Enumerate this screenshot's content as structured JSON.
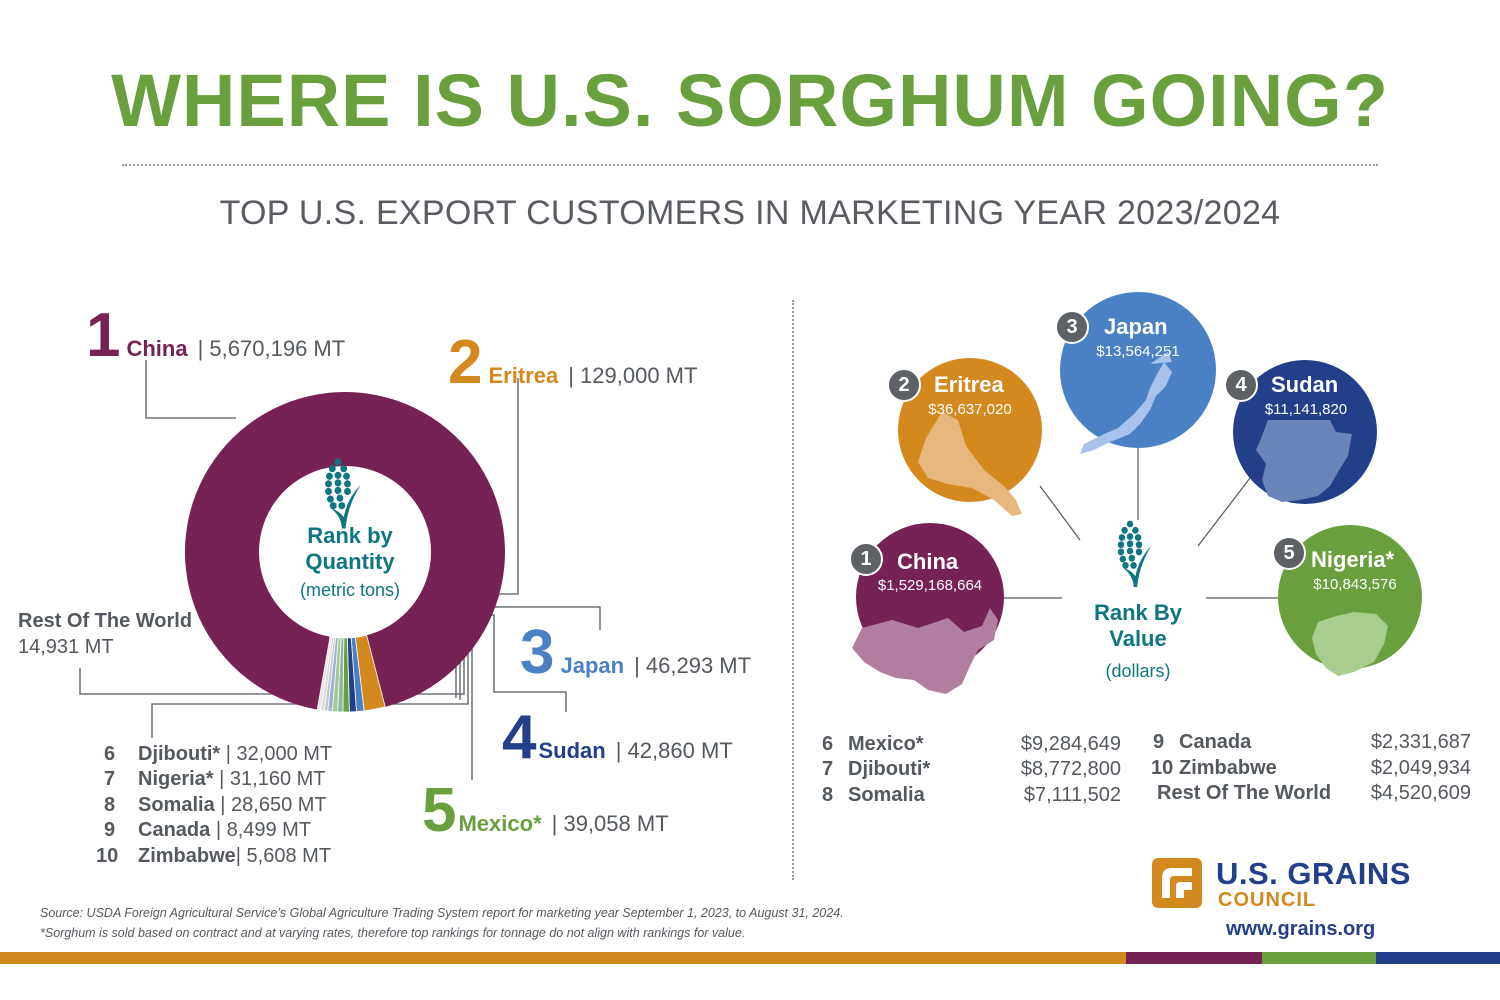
{
  "title": "WHERE IS U.S. SORGHUM GOING?",
  "subtitle": "TOP U.S. EXPORT CUSTOMERS IN MARKETING YEAR 2023/2024",
  "colors": {
    "title": "#6a9f3d",
    "china": "#772254",
    "eritrea": "#d4891f",
    "japan": "#4a81c4",
    "sudan": "#233f8a",
    "mexico": "#6a9f3d",
    "nigeria": "#6a9f3d",
    "teal": "#0e7680",
    "gray": "#54595f"
  },
  "chart_data": [
    {
      "type": "pie",
      "title": "Rank by Quantity",
      "subtitle": "(metric tons)",
      "slices": [
        {
          "rank": "1",
          "name": "China",
          "value": 5670196,
          "label": "| 5,670,196 MT",
          "color": "#772254"
        },
        {
          "rank": "2",
          "name": "Eritrea",
          "value": 129000,
          "label": "| 129,000 MT",
          "color": "#d4891f"
        },
        {
          "rank": "3",
          "name": "Japan",
          "value": 46293,
          "label": "| 46,293 MT",
          "color": "#4a81c4"
        },
        {
          "rank": "4",
          "name": "Sudan",
          "value": 42860,
          "label": "| 42,860 MT",
          "color": "#233f8a"
        },
        {
          "rank": "5",
          "name": "Mexico*",
          "value": 39058,
          "label": "| 39,058 MT",
          "color": "#6a9f3d"
        },
        {
          "rank": "6",
          "name": "Djibouti*",
          "value": 32000,
          "label": "|  32,000 MT",
          "color": "#8bb8a8"
        },
        {
          "rank": "7",
          "name": "Nigeria*",
          "value": 31160,
          "label": "|  31,160 MT",
          "color": "#a9c68f"
        },
        {
          "rank": "8",
          "name": "Somalia",
          "value": 28650,
          "label": "|  28,650 MT",
          "color": "#9bb4d6"
        },
        {
          "rank": "9",
          "name": "Canada",
          "value": 8499,
          "label": "|  8,499 MT",
          "color": "#c6c7c9"
        },
        {
          "rank": "10",
          "name": "Zimbabwe",
          "value": 5608,
          "label": "|  5,608 MT",
          "color": "#d9dadb"
        },
        {
          "rank": "",
          "name": "Rest Of The World",
          "value": 14931,
          "label": "14,931  MT",
          "color": "#e6e6e6"
        }
      ]
    },
    {
      "type": "bubble",
      "title": "Rank By Value",
      "subtitle": "(dollars)",
      "items": [
        {
          "rank": "1",
          "name": "China",
          "value": 1529168664,
          "label": "$1,529,168,664",
          "color": "#772254"
        },
        {
          "rank": "2",
          "name": "Eritrea",
          "value": 36637020,
          "label": "$36,637,020",
          "color": "#d4891f"
        },
        {
          "rank": "3",
          "name": "Japan",
          "value": 13564251,
          "label": "$13,564,251",
          "color": "#4a81c4"
        },
        {
          "rank": "4",
          "name": "Sudan",
          "value": 11141820,
          "label": "$11,141,820",
          "color": "#233f8a"
        },
        {
          "rank": "5",
          "name": "Nigeria*",
          "value": 10843576,
          "label": "$10,843,576",
          "color": "#6a9f3d"
        },
        {
          "rank": "6",
          "name": "Mexico*",
          "value": 9284649,
          "label": "$9,284,649"
        },
        {
          "rank": "7",
          "name": "Djibouti*",
          "value": 8772800,
          "label": "$8,772,800"
        },
        {
          "rank": "8",
          "name": "Somalia",
          "value": 7111502,
          "label": "$7,111,502"
        },
        {
          "rank": "9",
          "name": "Canada",
          "value": 2331687,
          "label": "$2,331,687"
        },
        {
          "rank": "10",
          "name": "Zimbabwe",
          "value": 2049934,
          "label": "$2,049,934"
        },
        {
          "rank": "",
          "name": "Rest Of The World",
          "value": 4520609,
          "label": "$4,520,609"
        }
      ]
    }
  ],
  "quantity": {
    "center_line1": "Rank by",
    "center_line2": "Quantity",
    "center_line3": "(metric tons)"
  },
  "value": {
    "center_line1": "Rank By",
    "center_line2": "Value",
    "center_line3": "(dollars)"
  },
  "source": "Source: USDA Foreign Agricultural Service’s Global Agriculture Trading System report for marketing year September 1, 2023, to August 31, 2024.",
  "footnote": "*Sorghum is sold based on contract and at varying rates, therefore top rankings for tonnage do not align with rankings for value.",
  "logo": {
    "name": "U.S. GRAINS",
    "sub": "COUNCIL",
    "website": "www.grains.org",
    "icon": "grains-council-logo-icon"
  },
  "icons": {
    "sorghum": "sorghum-grain-icon"
  }
}
